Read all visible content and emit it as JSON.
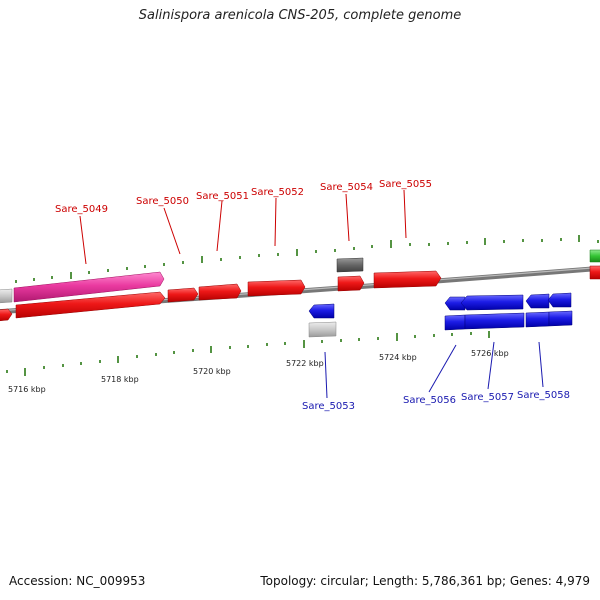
{
  "title": "Salinispora arenicola CNS-205, complete genome",
  "footer": {
    "accession": "Accession: NC_009953",
    "summary": "Topology: circular; Length: 5,786,361 bp; Genes: 4,979"
  },
  "colors": {
    "forward_gene": "#e8141b",
    "reverse_gene": "#1a17e0",
    "pink_gene": "#e8329b",
    "gray_gene": "#c6c6c6",
    "dark_gene": "#666666",
    "green_gene": "#33c433",
    "backbone": "#777777",
    "tick": "#2a7a14",
    "label_fwd": "#cc0000",
    "label_rev": "#1a1ab0"
  },
  "kbp_labels": [
    "5716 kbp",
    "5718 kbp",
    "5720 kbp",
    "5722 kbp",
    "5724 kbp",
    "5726 kbp"
  ],
  "gene_labels_top": [
    "Sare_5049",
    "Sare_5050",
    "Sare_5051",
    "Sare_5052",
    "Sare_5054",
    "Sare_5055"
  ],
  "gene_labels_bottom": [
    "Sare_5053",
    "Sare_5056",
    "Sare_5057",
    "Sare_5058"
  ]
}
